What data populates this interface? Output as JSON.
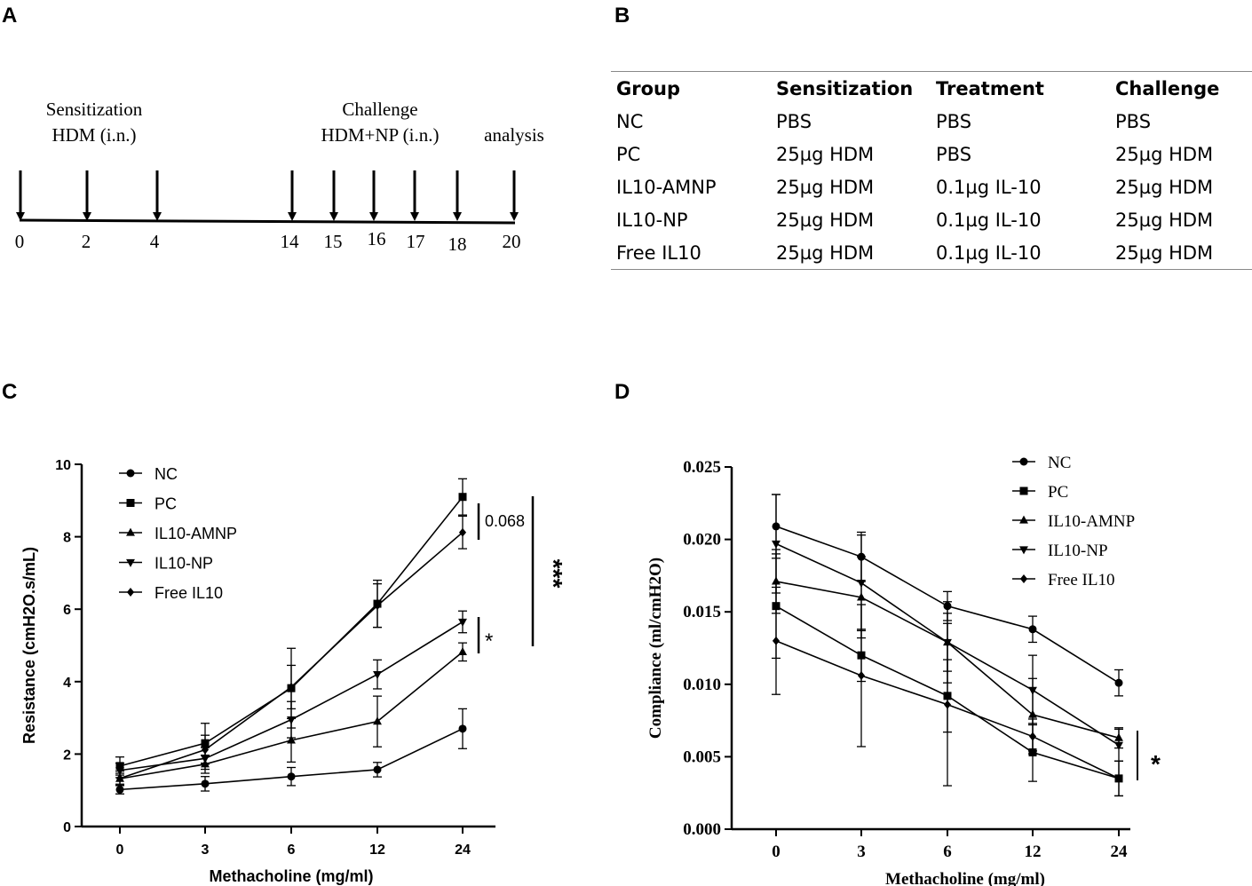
{
  "panels": {
    "a": "A",
    "b": "B",
    "c": "C",
    "d": "D"
  },
  "timeline": {
    "sensitization": "Sensitization",
    "sensitization_route": "HDM (i.n.)",
    "challenge": "Challenge",
    "challenge_route": "HDM+NP (i.n.)",
    "analysis": "analysis",
    "days": [
      "0",
      "2",
      "4",
      "14",
      "15",
      "16",
      "17",
      "18",
      "20"
    ]
  },
  "table": {
    "headers": [
      "Group",
      "Sensitization",
      "Treatment",
      "Challenge"
    ],
    "rows": [
      [
        "NC",
        "PBS",
        "PBS",
        "PBS"
      ],
      [
        "PC",
        "25µg HDM",
        "PBS",
        "25µg HDM"
      ],
      [
        "IL10-AMNP",
        "25µg HDM",
        "0.1µg IL-10",
        "25µg HDM"
      ],
      [
        "IL10-NP",
        "25µg HDM",
        "0.1µg IL-10",
        "25µg HDM"
      ],
      [
        "Free IL10",
        "25µg HDM",
        "0.1µg IL-10",
        "25µg HDM"
      ]
    ]
  },
  "chart_data": [
    {
      "type": "line",
      "panel": "C",
      "xlabel": "Methacholine (mg/ml)",
      "ylabel": "Resistance (cmH2O.s/mL)",
      "categories": [
        "0",
        "3",
        "6",
        "12",
        "24"
      ],
      "ylim": [
        0,
        10
      ],
      "yticks": [
        "0",
        "2",
        "4",
        "6",
        "8",
        "10"
      ],
      "legend_position": "top-left",
      "series": [
        {
          "name": "NC",
          "marker": "circle",
          "values": [
            1.02,
            1.18,
            1.38,
            1.57,
            2.7
          ],
          "errors": [
            0.12,
            0.2,
            0.25,
            0.2,
            0.55
          ]
        },
        {
          "name": "PC",
          "marker": "square",
          "values": [
            1.67,
            2.3,
            3.82,
            6.15,
            9.1
          ],
          "errors": [
            0.25,
            0.55,
            1.1,
            0.65,
            0.5
          ]
        },
        {
          "name": "IL10-AMNP",
          "marker": "triangle-up",
          "values": [
            1.32,
            1.72,
            2.38,
            2.9,
            4.82
          ],
          "errors": [
            0.15,
            0.25,
            0.6,
            0.7,
            0.25
          ]
        },
        {
          "name": "IL10-NP",
          "marker": "triangle-down",
          "values": [
            1.55,
            1.88,
            2.95,
            4.2,
            5.65
          ],
          "errors": [
            0.2,
            0.3,
            0.5,
            0.4,
            0.3
          ]
        },
        {
          "name": "Free IL10",
          "marker": "diamond",
          "values": [
            1.33,
            2.12,
            3.85,
            6.1,
            8.12
          ],
          "errors": [
            0.2,
            0.4,
            0.6,
            0.6,
            0.45
          ]
        }
      ],
      "annotations": [
        "0.068",
        "*",
        "***"
      ]
    },
    {
      "type": "line",
      "panel": "D",
      "xlabel": "Methacholine (mg/ml)",
      "ylabel": "Compliance (ml/cmH2O)",
      "categories": [
        "0",
        "3",
        "6",
        "12",
        "24"
      ],
      "ylim": [
        0,
        0.025
      ],
      "yticks": [
        "0.000",
        "0.005",
        "0.010",
        "0.015",
        "0.020",
        "0.025"
      ],
      "legend_position": "top-right",
      "series": [
        {
          "name": "NC",
          "marker": "circle",
          "values": [
            0.0209,
            0.0188,
            0.0154,
            0.0138,
            0.0101
          ],
          "errors": [
            0.0022,
            0.0017,
            0.001,
            0.0009,
            0.0009
          ]
        },
        {
          "name": "PC",
          "marker": "square",
          "values": [
            0.0154,
            0.012,
            0.0092,
            0.0053,
            0.0035
          ],
          "errors": [
            0.0036,
            0.0018,
            0.0025,
            0.002,
            0.0012
          ]
        },
        {
          "name": "IL10-AMNP",
          "marker": "triangle-up",
          "values": [
            0.0171,
            0.016,
            0.0129,
            0.0079,
            0.0063
          ],
          "errors": [
            0.0022,
            0.0028,
            0.002,
            0.0025,
            0.0007
          ]
        },
        {
          "name": "IL10-NP",
          "marker": "triangle-down",
          "values": [
            0.0197,
            0.017,
            0.0129,
            0.0096,
            0.0058
          ],
          "errors": [
            0.0034,
            0.0033,
            0.0028,
            0.0024,
            0.0011
          ]
        },
        {
          "name": "Free IL10",
          "marker": "diamond",
          "values": [
            0.013,
            0.0106,
            0.0086,
            0.0064,
            0.0035
          ],
          "errors": [
            0.0037,
            0.0049,
            0.0056,
            0.0012,
            0.0012
          ]
        }
      ],
      "annotations": [
        "*"
      ]
    }
  ]
}
